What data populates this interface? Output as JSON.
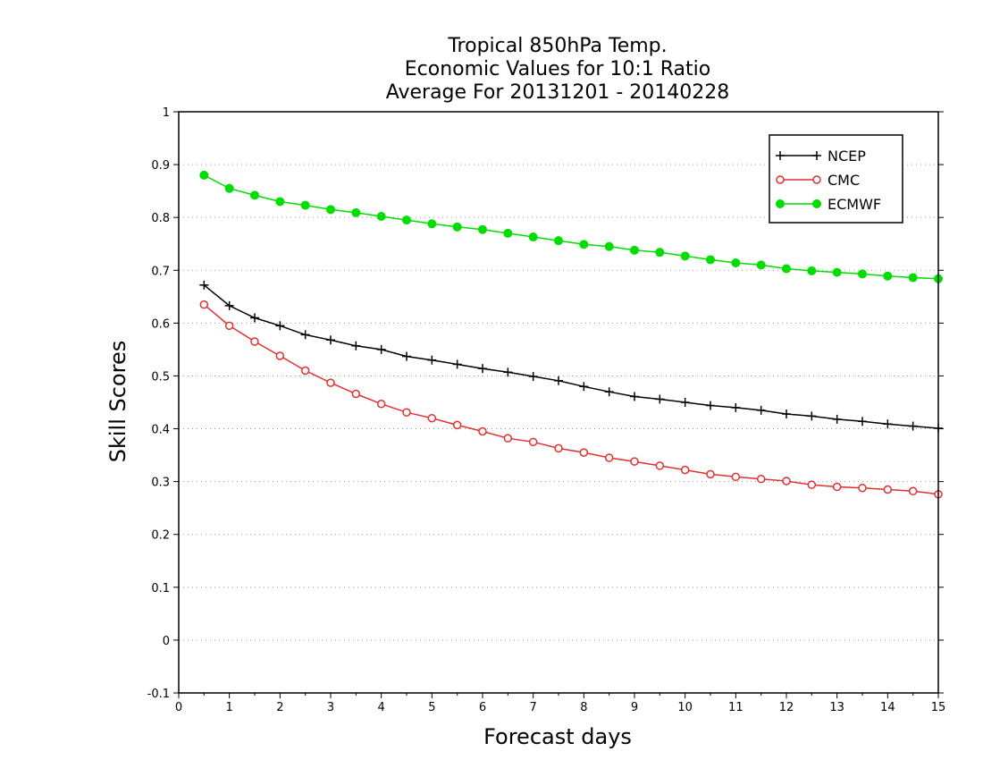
{
  "chart_data": {
    "type": "line",
    "title_lines": [
      "Tropical 850hPa Temp.",
      "Economic Values for 10:1 Ratio",
      "Average For 20131201 - 20140228"
    ],
    "xlabel": "Forecast days",
    "ylabel": "Skill Scores",
    "xlim": [
      0,
      15
    ],
    "ylim": [
      -0.1,
      1
    ],
    "x_ticks": [
      "0",
      "1",
      "2",
      "3",
      "4",
      "5",
      "6",
      "7",
      "8",
      "9",
      "10",
      "11",
      "12",
      "13",
      "14",
      "15"
    ],
    "y_ticks": [
      "-0.1",
      "0",
      "0.1",
      "0.2",
      "0.3",
      "0.4",
      "0.5",
      "0.6",
      "0.7",
      "0.8",
      "0.9",
      "1"
    ],
    "grid": true,
    "legend_position": "top-right",
    "x": [
      0.5,
      1,
      1.5,
      2,
      2.5,
      3,
      3.5,
      4,
      4.5,
      5,
      5.5,
      6,
      6.5,
      7,
      7.5,
      8,
      8.5,
      9,
      9.5,
      10,
      10.5,
      11,
      11.5,
      12,
      12.5,
      13,
      13.5,
      14,
      14.5,
      15
    ],
    "series": [
      {
        "name": "NCEP",
        "color": "#000000",
        "marker": "plus",
        "values": [
          0.672,
          0.633,
          0.61,
          0.595,
          0.578,
          0.568,
          0.557,
          0.55,
          0.537,
          0.53,
          0.522,
          0.514,
          0.507,
          0.499,
          0.491,
          0.48,
          0.47,
          0.461,
          0.456,
          0.45,
          0.444,
          0.44,
          0.435,
          0.428,
          0.424,
          0.418,
          0.414,
          0.409,
          0.405,
          0.401
        ]
      },
      {
        "name": "CMC",
        "color": "#e03030",
        "marker": "open-circle",
        "values": [
          0.635,
          0.595,
          0.565,
          0.538,
          0.51,
          0.487,
          0.466,
          0.447,
          0.431,
          0.42,
          0.407,
          0.395,
          0.382,
          0.375,
          0.363,
          0.355,
          0.345,
          0.338,
          0.33,
          0.322,
          0.314,
          0.309,
          0.305,
          0.301,
          0.294,
          0.29,
          0.288,
          0.285,
          0.282,
          0.276
        ]
      },
      {
        "name": "ECMWF",
        "color": "#00dd00",
        "marker": "filled-circle",
        "values": [
          0.88,
          0.855,
          0.842,
          0.83,
          0.823,
          0.815,
          0.809,
          0.802,
          0.795,
          0.788,
          0.782,
          0.777,
          0.77,
          0.763,
          0.756,
          0.749,
          0.745,
          0.738,
          0.734,
          0.727,
          0.72,
          0.714,
          0.71,
          0.703,
          0.699,
          0.696,
          0.693,
          0.689,
          0.686,
          0.684
        ]
      }
    ]
  }
}
